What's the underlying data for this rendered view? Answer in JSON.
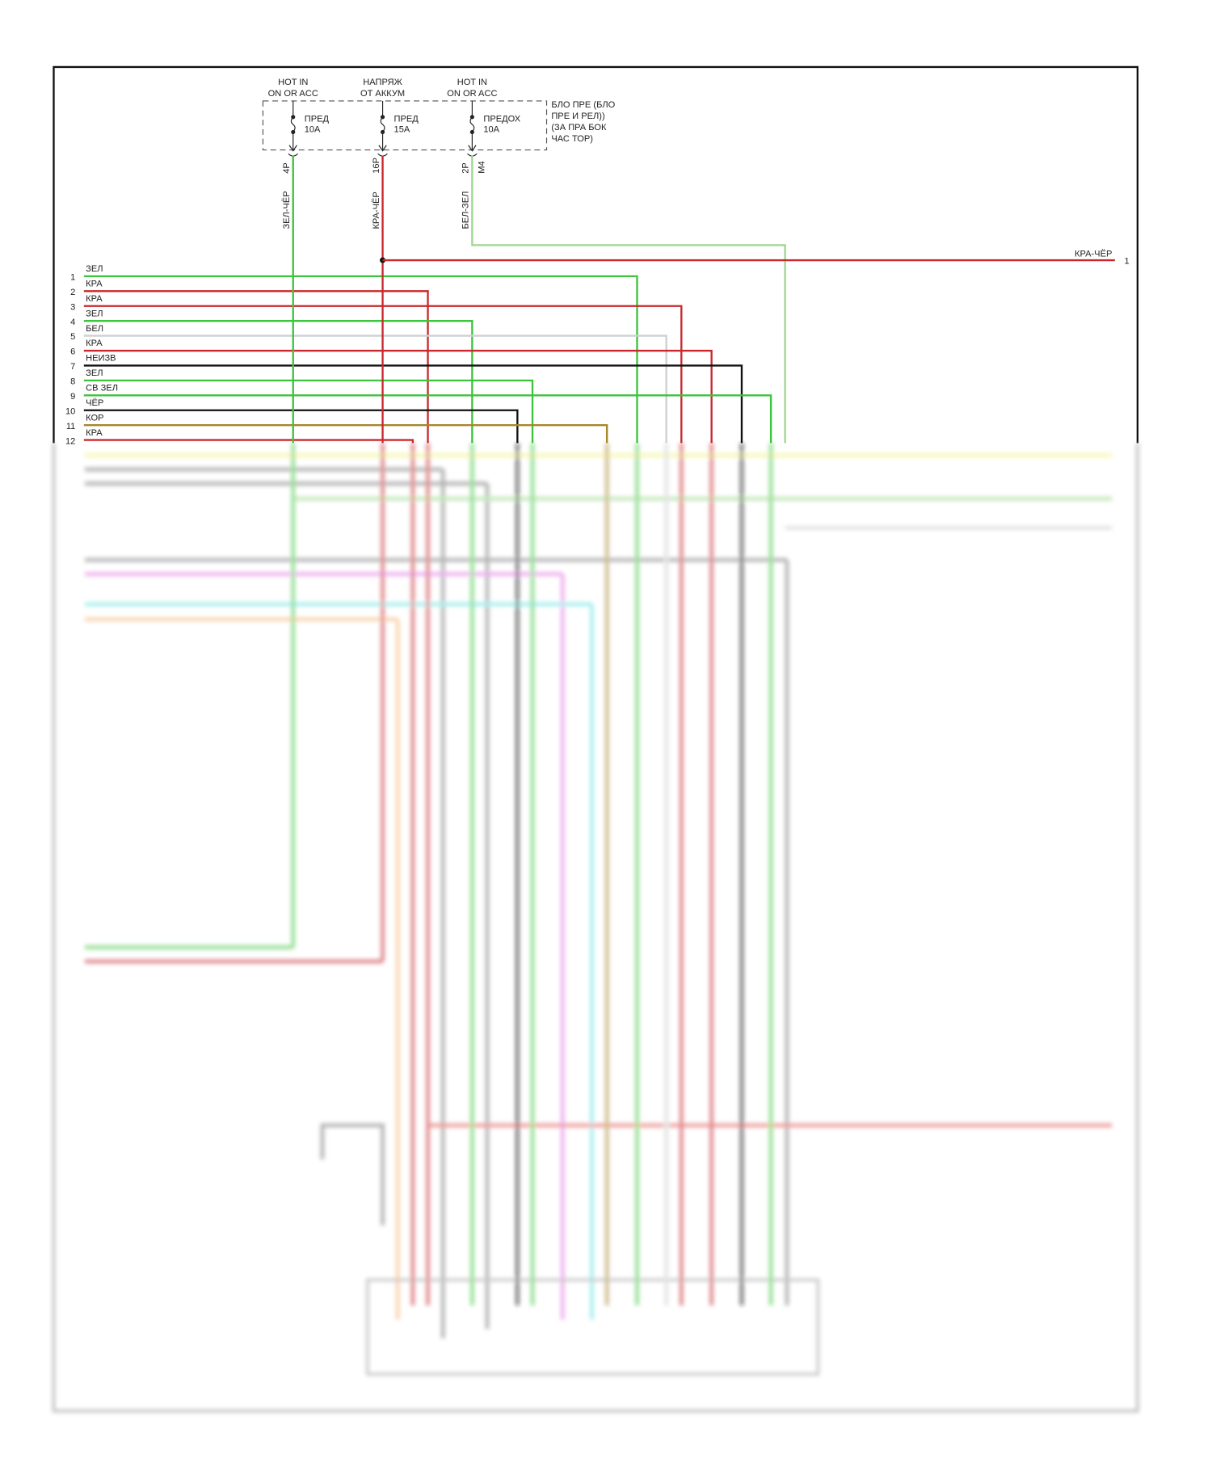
{
  "fuse_box": {
    "label_lines": [
      "БЛО ПРЕ (БЛО",
      "ПРЕ И РЕЛ))",
      "(ЗА ПРА БОК",
      "ЧАС ТОР)"
    ],
    "fuses": [
      {
        "source_lines": [
          "HOT IN",
          "ON OR ACC"
        ],
        "name": "ПРЕД",
        "rating": "10A",
        "pin": "4P",
        "wire": "ЗЕЛ-ЧЁР",
        "connector": "",
        "color": "#3cc43c"
      },
      {
        "source_lines": [
          "НАПРЯЖ",
          "ОТ АККУМ"
        ],
        "name": "ПРЕД",
        "rating": "15A",
        "pin": "16P",
        "wire": "КРА-ЧЁР",
        "connector": "",
        "color": "#c8282d"
      },
      {
        "source_lines": [
          "HOT IN",
          "ON OR ACC"
        ],
        "name": "ПРЕДОХ",
        "rating": "10A",
        "pin": "2P",
        "wire": "БЕЛ-ЗЕЛ",
        "connector": "M4",
        "color": "#9fd68f"
      }
    ]
  },
  "output_wire": {
    "label": "КРА-ЧЁР",
    "pin": "1",
    "color": "#c8282d"
  },
  "rows": [
    {
      "num": "1",
      "label": "ЗЕЛ",
      "color": "#3cc43c"
    },
    {
      "num": "2",
      "label": "КРА",
      "color": "#c8282d"
    },
    {
      "num": "3",
      "label": "КРА",
      "color": "#c8282d"
    },
    {
      "num": "4",
      "label": "ЗЕЛ",
      "color": "#3cc43c"
    },
    {
      "num": "5",
      "label": "БЕЛ",
      "color": "#cfcfcf"
    },
    {
      "num": "6",
      "label": "КРА",
      "color": "#c8282d"
    },
    {
      "num": "7",
      "label": "НЕИЗВ",
      "color": "#111111"
    },
    {
      "num": "8",
      "label": "ЗЕЛ",
      "color": "#3cc43c"
    },
    {
      "num": "9",
      "label": "СВ ЗЕЛ",
      "color": "#3cc43c"
    },
    {
      "num": "10",
      "label": "ЧЁР",
      "color": "#111111"
    },
    {
      "num": "11",
      "label": "КОР",
      "color": "#a8862a"
    },
    {
      "num": "12",
      "label": "КРА",
      "color": "#c8282d"
    }
  ]
}
